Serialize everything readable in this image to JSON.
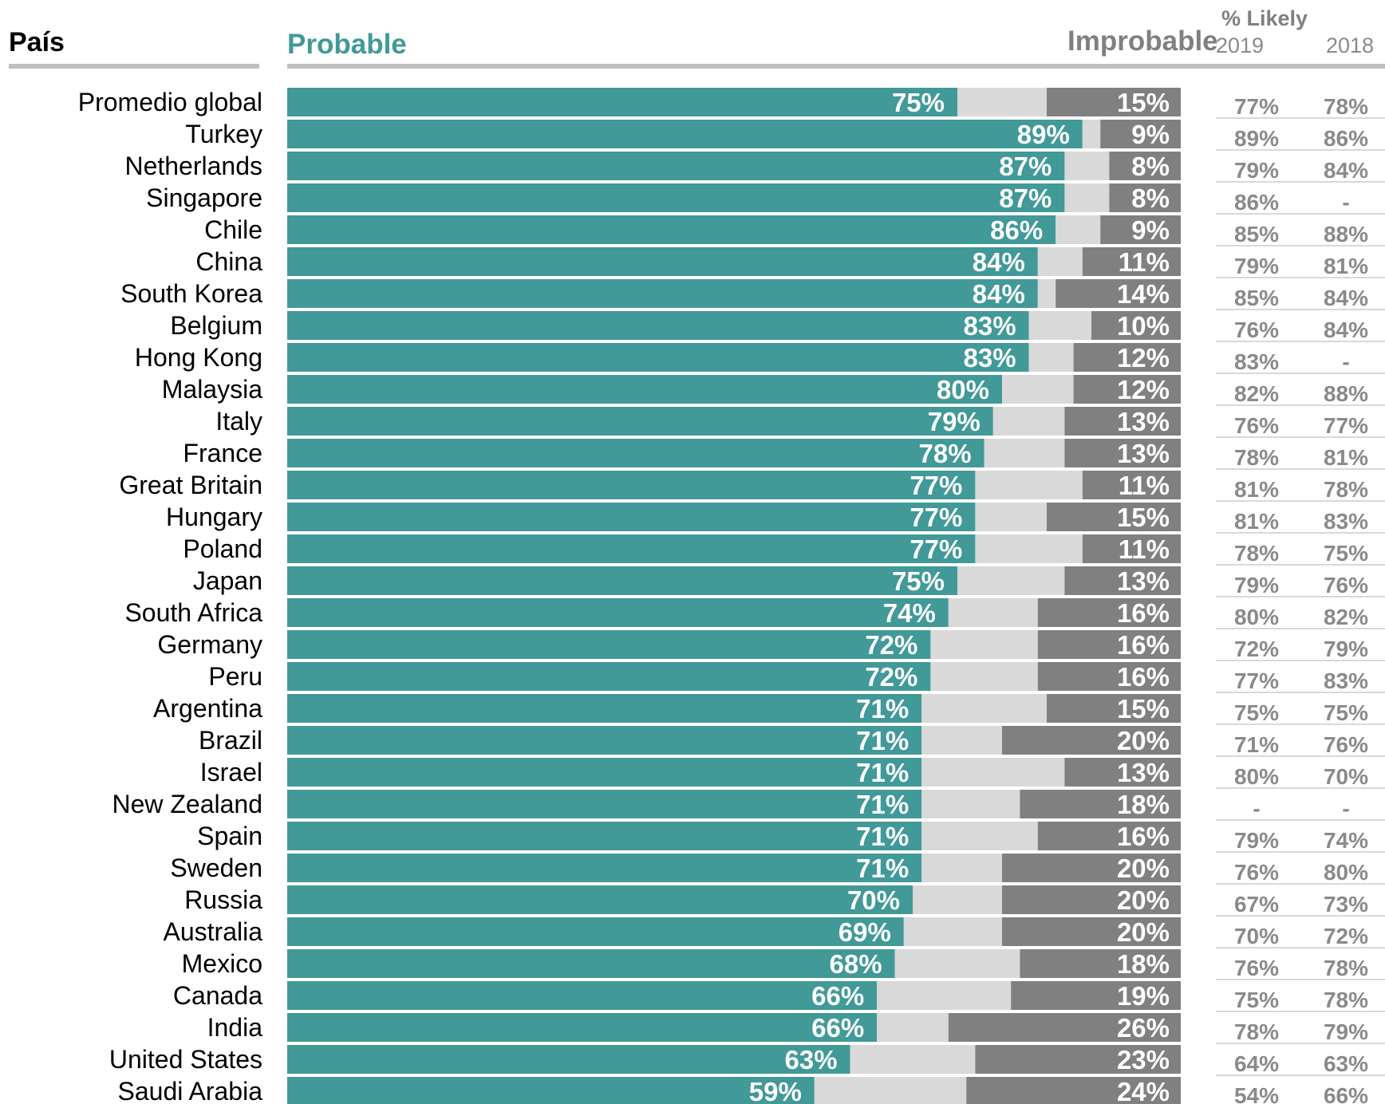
{
  "headers": {
    "country": "País",
    "likely": "Probable",
    "unlikely": "Improbable",
    "trend_title": "% Likely",
    "year_2019": "2019",
    "year_2018": "2018"
  },
  "colors": {
    "likely": "#419998",
    "neutral": "#d9d9d9",
    "unlikely": "#808080",
    "trend_text": "#8a8a8a",
    "header_rule": "#bfbfbf"
  },
  "chart_data": {
    "type": "bar",
    "orientation": "horizontal",
    "stacked": true,
    "xlim": [
      0,
      100
    ],
    "categories": [
      "Promedio global",
      "Turkey",
      "Netherlands",
      "Singapore",
      "Chile",
      "China",
      "South Korea",
      "Belgium",
      "Hong Kong",
      "Malaysia",
      "Italy",
      "France",
      "Great Britain",
      "Hungary",
      "Poland",
      "Japan",
      "South Africa",
      "Germany",
      "Peru",
      "Argentina",
      "Brazil",
      "Israel",
      "New Zealand",
      "Spain",
      "Sweden",
      "Russia",
      "Australia",
      "Mexico",
      "Canada",
      "India",
      "United States",
      "Saudi Arabia"
    ],
    "series": [
      {
        "name": "Probable",
        "values": [
          75,
          89,
          87,
          87,
          86,
          84,
          84,
          83,
          83,
          80,
          79,
          78,
          77,
          77,
          77,
          75,
          74,
          72,
          72,
          71,
          71,
          71,
          71,
          71,
          71,
          70,
          69,
          68,
          66,
          66,
          63,
          59
        ]
      },
      {
        "values": [
          10,
          2,
          5,
          5,
          5,
          5,
          2,
          7,
          5,
          8,
          8,
          9,
          12,
          8,
          12,
          12,
          10,
          12,
          12,
          14,
          9,
          16,
          11,
          13,
          9,
          10,
          11,
          14,
          15,
          8,
          14,
          17
        ]
      },
      {
        "name": "Improbable",
        "values": [
          15,
          9,
          8,
          8,
          9,
          11,
          14,
          10,
          12,
          12,
          13,
          13,
          11,
          15,
          11,
          13,
          16,
          16,
          16,
          15,
          20,
          13,
          18,
          16,
          20,
          20,
          20,
          18,
          19,
          26,
          23,
          24
        ]
      }
    ],
    "likely_labels": [
      "75%",
      "89%",
      "87%",
      "87%",
      "86%",
      "84%",
      "84%",
      "83%",
      "83%",
      "80%",
      "79%",
      "78%",
      "77%",
      "77%",
      "77%",
      "75%",
      "74%",
      "72%",
      "72%",
      "71%",
      "71%",
      "71%",
      "71%",
      "71%",
      "71%",
      "70%",
      "69%",
      "68%",
      "66%",
      "66%",
      "63%",
      "59%"
    ],
    "unlikely_labels": [
      "15%",
      "9%",
      "8%",
      "8%",
      "9%",
      "11%",
      "14%",
      "10%",
      "12%",
      "12%",
      "13%",
      "13%",
      "11%",
      "15%",
      "11%",
      "13%",
      "16%",
      "16%",
      "16%",
      "15%",
      "20%",
      "13%",
      "18%",
      "16%",
      "20%",
      "20%",
      "20%",
      "18%",
      "19%",
      "26%",
      "23%",
      "24%"
    ],
    "likely_2019": [
      "77%",
      "89%",
      "79%",
      "86%",
      "85%",
      "79%",
      "85%",
      "76%",
      "83%",
      "82%",
      "76%",
      "78%",
      "81%",
      "81%",
      "78%",
      "79%",
      "80%",
      "72%",
      "77%",
      "75%",
      "71%",
      "80%",
      "-",
      "79%",
      "76%",
      "67%",
      "70%",
      "76%",
      "75%",
      "78%",
      "64%",
      "54%"
    ],
    "likely_2018": [
      "78%",
      "86%",
      "84%",
      "-",
      "88%",
      "81%",
      "84%",
      "84%",
      "-",
      "88%",
      "77%",
      "81%",
      "78%",
      "83%",
      "75%",
      "76%",
      "82%",
      "79%",
      "83%",
      "75%",
      "76%",
      "70%",
      "-",
      "74%",
      "80%",
      "73%",
      "72%",
      "78%",
      "78%",
      "79%",
      "63%",
      "66%"
    ]
  }
}
